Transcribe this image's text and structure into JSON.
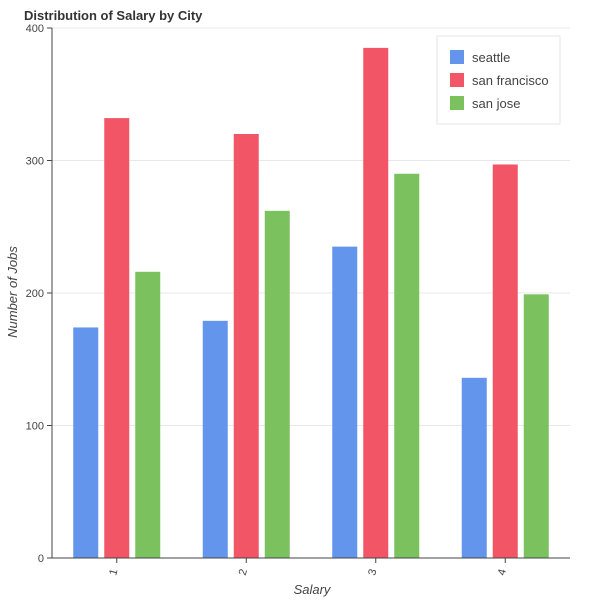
{
  "chart_data": {
    "type": "bar",
    "title": "Distribution of Salary by City",
    "xlabel": "Salary",
    "ylabel": "Number of Jobs",
    "categories": [
      "1",
      "2",
      "3",
      "4"
    ],
    "series": [
      {
        "name": "seattle",
        "values": [
          174,
          179,
          235,
          136
        ],
        "color": "#6495ed"
      },
      {
        "name": "san francisco",
        "values": [
          332,
          320,
          385,
          297
        ],
        "color": "#f25565"
      },
      {
        "name": "san jose",
        "values": [
          216,
          262,
          290,
          199
        ],
        "color": "#7bc25e"
      }
    ],
    "ylim": [
      0,
      400
    ],
    "yticks": [
      "0",
      "100",
      "200",
      "300",
      "400"
    ],
    "grid": "horizontal",
    "legend_position": "top-right"
  }
}
